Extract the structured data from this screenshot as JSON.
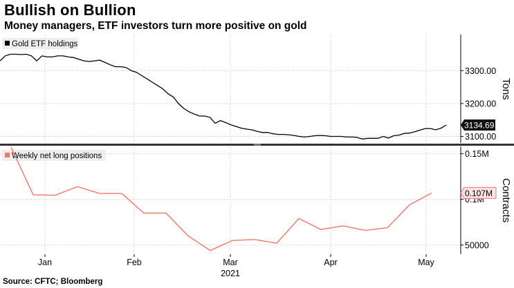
{
  "header": {
    "title": "Bullish on Bullion",
    "subtitle": "Money managers, ETF investors turn more positive on gold"
  },
  "source": "Source: CFTC; Bloomberg",
  "colors": {
    "etf": "#000000",
    "net_long": "#f0766c",
    "grid": "#d3d3d3",
    "panel_divider": "#333333"
  },
  "chart_data": [
    {
      "type": "line",
      "name": "etf-panel",
      "legend": "Gold ETF holdings",
      "ylabel": "Tons",
      "ylim": [
        3080,
        3410
      ],
      "yticks": [
        3100,
        3200,
        3300
      ],
      "ytick_labels": [
        "3100.00",
        "3200.00",
        "3300.00"
      ],
      "last_value_label": "3134.69",
      "series": [
        {
          "name": "Gold ETF holdings",
          "values": [
            3330,
            3345,
            3350,
            3350,
            3349,
            3350,
            3345,
            3330,
            3345,
            3342,
            3342,
            3345,
            3345,
            3342,
            3340,
            3335,
            3330,
            3328,
            3330,
            3332,
            3325,
            3318,
            3312,
            3312,
            3310,
            3300,
            3295,
            3285,
            3275,
            3265,
            3255,
            3245,
            3230,
            3220,
            3200,
            3185,
            3175,
            3168,
            3162,
            3162,
            3158,
            3140,
            3148,
            3142,
            3135,
            3130,
            3125,
            3122,
            3120,
            3115,
            3112,
            3112,
            3108,
            3106,
            3106,
            3105,
            3103,
            3100,
            3098,
            3100,
            3102,
            3103,
            3102,
            3100,
            3100,
            3100,
            3098,
            3098,
            3097,
            3092,
            3094,
            3094,
            3094,
            3100,
            3095,
            3102,
            3104,
            3109,
            3110,
            3114,
            3119,
            3124,
            3124,
            3120,
            3125,
            3134.69
          ]
        }
      ]
    },
    {
      "type": "line",
      "name": "net-long-panel",
      "legend": "Weekly net long positions",
      "ylabel": "Contracts",
      "ylim": [
        40000,
        158000
      ],
      "yticks": [
        50000,
        100000,
        150000
      ],
      "ytick_labels": [
        "50000",
        "0.1M",
        "0.15M"
      ],
      "last_value_label": "0.107M",
      "x_axis_labels": [
        "Jan",
        "Feb",
        "Mar",
        "Apr",
        "May"
      ],
      "x_axis_year": "2021",
      "series": [
        {
          "name": "Weekly net long positions",
          "values": [
            157000,
            105000,
            104500,
            114000,
            106500,
            106500,
            85000,
            85000,
            60000,
            44000,
            55000,
            56000,
            52000,
            79000,
            67000,
            71000,
            66000,
            69000,
            94000,
            107000
          ]
        }
      ]
    }
  ]
}
